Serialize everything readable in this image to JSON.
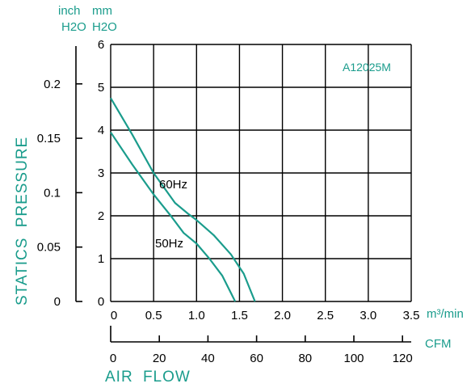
{
  "chart_data": {
    "type": "line",
    "model_label": "A12025M",
    "ylabel": "STATICS PRESSURE",
    "xlabel": "AIR FLOW",
    "y_units": {
      "left_top": "inch",
      "left_bottom": "H2O",
      "right_top": "mm",
      "right_bottom": "H2O"
    },
    "x_units": {
      "primary": "m³/min",
      "secondary": "CFM"
    },
    "xlim": [
      0,
      3.5
    ],
    "ylim": [
      0,
      6
    ],
    "x_ticks": [
      "0",
      "0.5",
      "1.0",
      "1.5",
      "2.0",
      "2.5",
      "3.0",
      "3.5"
    ],
    "y_ticks": [
      "0",
      "1",
      "2",
      "3",
      "4",
      "5",
      "6"
    ],
    "y_inch_ticks": [
      {
        "label": "0",
        "value_mm": 0
      },
      {
        "label": "0.05",
        "value_mm": 1.27
      },
      {
        "label": "0.1",
        "value_mm": 2.54
      },
      {
        "label": "0.15",
        "value_mm": 3.81
      },
      {
        "label": "0.2",
        "value_mm": 5.08
      }
    ],
    "cfm_ticks": [
      "0",
      "20",
      "40",
      "60",
      "80",
      "100",
      "120"
    ],
    "grid": true,
    "line_color": "#1a9c8c",
    "series": [
      {
        "name": "60Hz",
        "x": [
          0,
          0.25,
          0.5,
          0.75,
          0.9,
          1.0,
          1.2,
          1.4,
          1.55,
          1.65,
          1.68
        ],
        "y": [
          4.75,
          3.9,
          3.0,
          2.3,
          2.05,
          1.9,
          1.55,
          1.1,
          0.65,
          0.15,
          0
        ]
      },
      {
        "name": "50Hz",
        "x": [
          0,
          0.25,
          0.5,
          0.7,
          0.85,
          1.0,
          1.15,
          1.3,
          1.4,
          1.45
        ],
        "y": [
          3.95,
          3.2,
          2.5,
          2.0,
          1.6,
          1.35,
          1.0,
          0.6,
          0.2,
          0
        ]
      }
    ]
  }
}
